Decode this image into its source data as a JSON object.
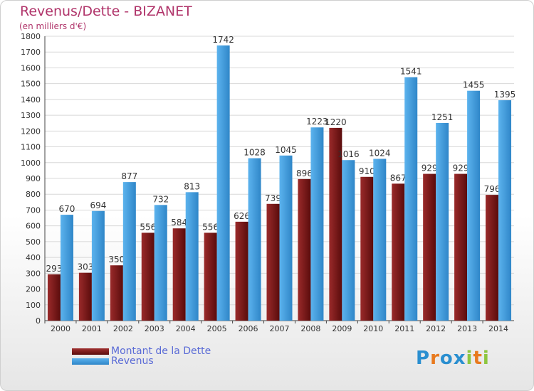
{
  "chart_data": {
    "type": "bar",
    "title": "Revenus/Dette - BIZANET",
    "subtitle": "(en milliers d'€)",
    "categories": [
      "2000",
      "2001",
      "2002",
      "2003",
      "2004",
      "2005",
      "2006",
      "2007",
      "2008",
      "2009",
      "2010",
      "2011",
      "2012",
      "2013",
      "2014"
    ],
    "series": [
      {
        "name": "Montant de la Dette",
        "values": [
          293,
          303,
          350,
          556,
          584,
          556,
          626,
          739,
          896,
          1220,
          910,
          867,
          929,
          929,
          796
        ],
        "color": "#7a1a1a"
      },
      {
        "name": "Revenus",
        "values": [
          670,
          694,
          877,
          732,
          813,
          1742,
          1028,
          1045,
          1223,
          1016,
          1024,
          1541,
          1251,
          1455,
          1395
        ],
        "color": "#3d9de0"
      }
    ],
    "ylim": [
      0,
      1800
    ],
    "yticks": [
      0,
      100,
      200,
      300,
      400,
      500,
      600,
      700,
      800,
      900,
      1000,
      1100,
      1200,
      1300,
      1400,
      1500,
      1600,
      1700,
      1800
    ],
    "grid": true,
    "legend_position": "bottom-left"
  },
  "branding": {
    "logo_letters": [
      "P",
      "r",
      "o",
      "x",
      "i",
      "t",
      "i"
    ],
    "logo_colors": [
      "#2a8fd0",
      "#e87a1e",
      "#2a8fd0",
      "#2a8fd0",
      "#8dc63f",
      "#e87a1e",
      "#8dc63f"
    ]
  }
}
